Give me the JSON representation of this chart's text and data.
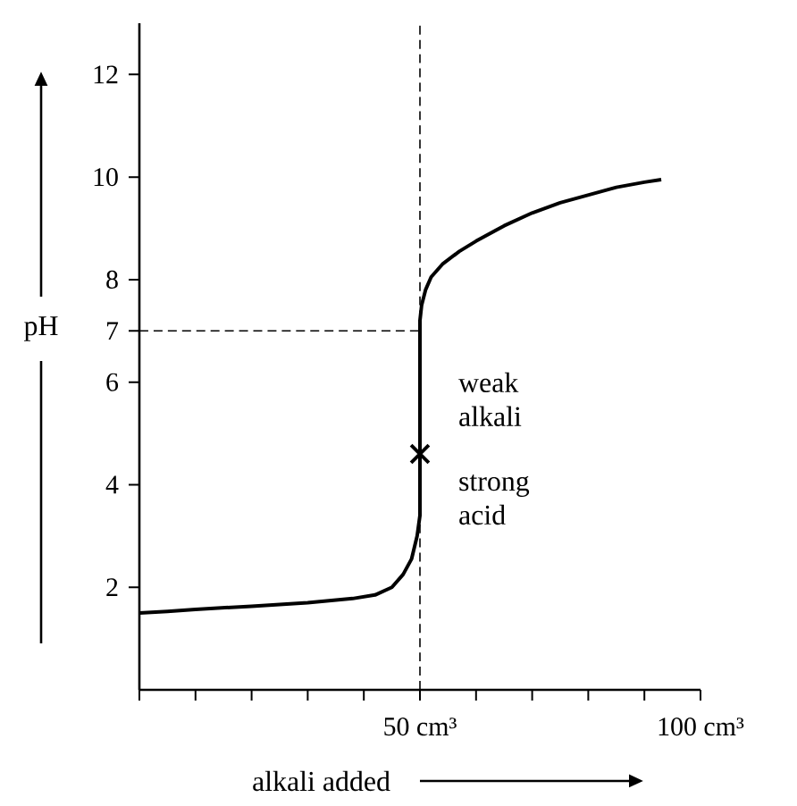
{
  "chart_data": {
    "type": "line",
    "xlabel": "alkali added",
    "ylabel": "pH",
    "xlim": [
      0,
      100
    ],
    "ylim": [
      0,
      13
    ],
    "xticks": [
      {
        "value": 0,
        "label": null
      },
      {
        "value": 10,
        "label": null
      },
      {
        "value": 20,
        "label": null
      },
      {
        "value": 30,
        "label": null
      },
      {
        "value": 40,
        "label": null
      },
      {
        "value": 50,
        "label": "50 cm³"
      },
      {
        "value": 60,
        "label": null
      },
      {
        "value": 70,
        "label": null
      },
      {
        "value": 80,
        "label": null
      },
      {
        "value": 90,
        "label": null
      },
      {
        "value": 100,
        "label": "100 cm³"
      }
    ],
    "yticks": [
      2,
      4,
      6,
      7,
      8,
      10,
      12
    ],
    "series": [
      {
        "color": "#000000",
        "x": [
          0,
          5,
          10,
          20,
          30,
          38,
          42,
          45,
          47,
          48.5,
          49.5,
          50,
          50,
          50.3,
          51,
          52,
          54,
          57,
          60,
          65,
          70,
          75,
          80,
          85,
          90,
          93
        ],
        "values": [
          1.5,
          1.53,
          1.57,
          1.63,
          1.7,
          1.78,
          1.85,
          2.0,
          2.25,
          2.55,
          3.0,
          3.4,
          7.2,
          7.5,
          7.8,
          8.05,
          8.3,
          8.55,
          8.75,
          9.05,
          9.3,
          9.5,
          9.65,
          9.8,
          9.9,
          9.95
        ]
      },
      {
        "type": "scatter",
        "marker": "cross",
        "color": "#000000",
        "x": [
          50
        ],
        "values": [
          4.6
        ]
      }
    ],
    "ref_lines": [
      {
        "axis": "x",
        "value": 50,
        "line_style": "dashed",
        "color": "#000000"
      },
      {
        "axis": "y",
        "value": 7,
        "line_style": "dashed",
        "color": "#000000"
      }
    ],
    "annotations": [
      {
        "text": "weak alkali",
        "x": 50,
        "y": 4.6
      },
      {
        "text": "strong acid",
        "x": 50,
        "y": 4.6
      }
    ],
    "grid": false
  }
}
